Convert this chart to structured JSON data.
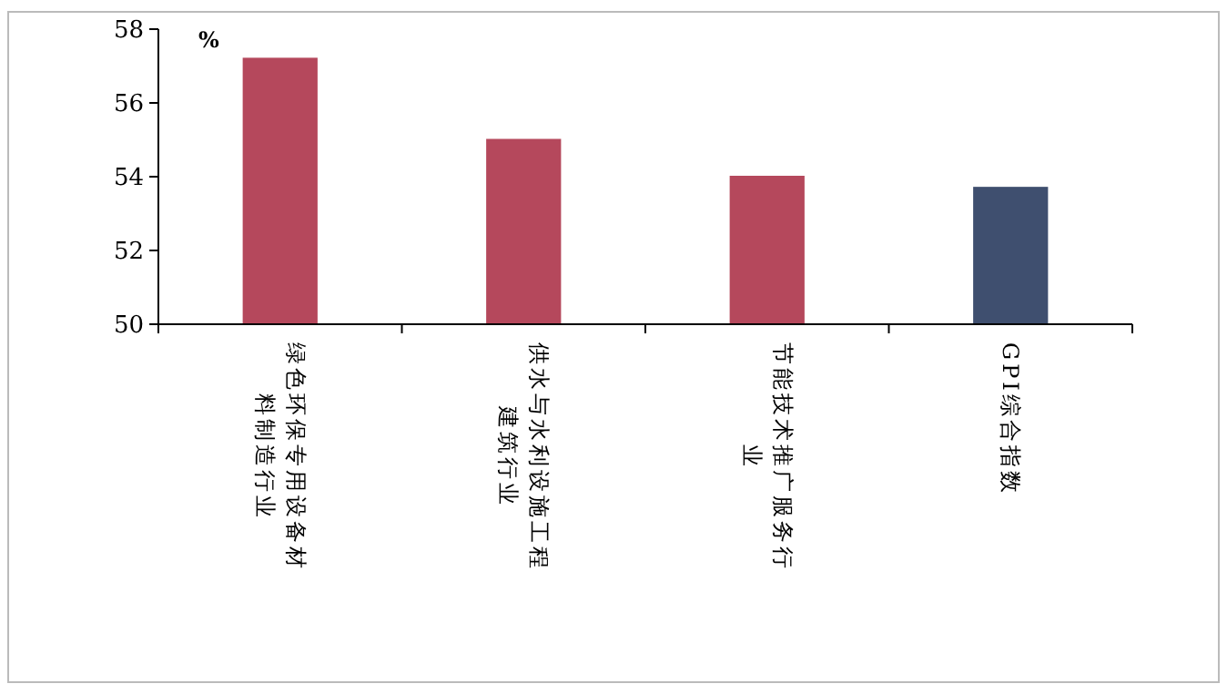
{
  "chart_data": {
    "type": "bar",
    "ylabel": "%",
    "categories": [
      "绿色环保专用设备材料制造行业",
      "供水与水利设施工程建筑行业",
      "节能技术推广服务行业",
      "GPI综合指数"
    ],
    "values": [
      57.2,
      55.0,
      54.0,
      53.7
    ],
    "colors": [
      "#b5485c",
      "#b5485c",
      "#b5485c",
      "#3f4f6f"
    ],
    "ylim": [
      50,
      58
    ],
    "yticks": [
      50,
      52,
      54,
      56,
      58
    ],
    "grid": false
  }
}
